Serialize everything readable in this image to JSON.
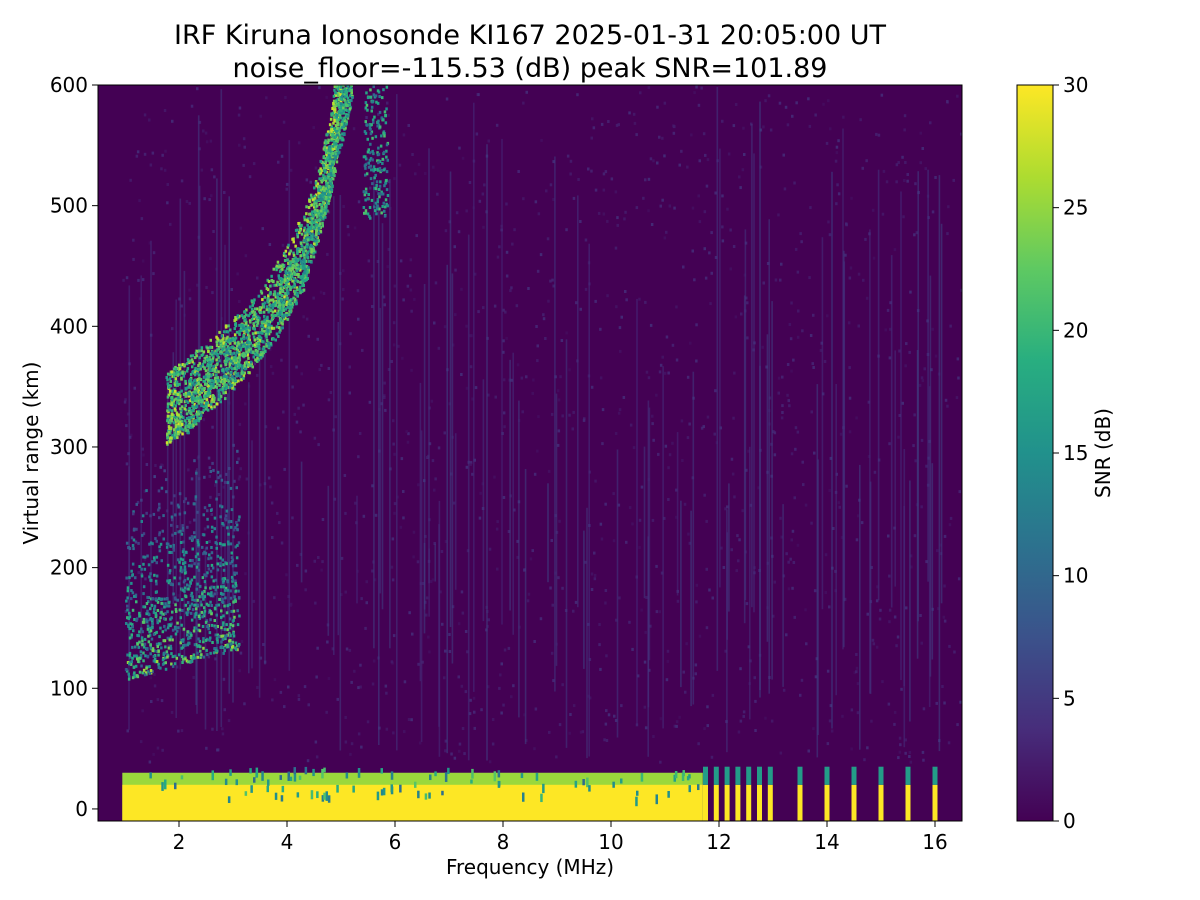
{
  "title": "IRF Kiruna Ionosonde KI167 2025-01-31 20:05:00  UT",
  "subtitle": "noise_floor=-115.53 (dB) peak SNR=101.89",
  "chart_data": {
    "type": "heatmap",
    "title": "IRF Kiruna Ionosonde KI167 2025-01-31 20:05:00  UT",
    "subtitle": "noise_floor=-115.53 (dB) peak SNR=101.89",
    "xlabel": "Frequency (MHz)",
    "ylabel": "Virtual range (km)",
    "colorbar_label": "SNR (dB)",
    "xlim": [
      0.5,
      16.5
    ],
    "ylim": [
      -10,
      600
    ],
    "clim": [
      0,
      30
    ],
    "colormap": "viridis",
    "x_ticks": [
      2,
      4,
      6,
      8,
      10,
      12,
      14,
      16
    ],
    "y_ticks": [
      0,
      100,
      200,
      300,
      400,
      500,
      600
    ],
    "colorbar_ticks": [
      0,
      5,
      10,
      15,
      20,
      25,
      30
    ],
    "sounding_freq_range": [
      0.95,
      16.5
    ],
    "sweep_freq_max_continuous": 11.7,
    "discrete_high_freqs": [
      11.75,
      11.95,
      12.15,
      12.35,
      12.55,
      12.75,
      12.95,
      13.5,
      14.0,
      14.5,
      15.0,
      15.5,
      16.0
    ],
    "features": [
      {
        "name": "ground clutter",
        "freq_range": [
          0.95,
          11.7
        ],
        "range_km": [
          -10,
          30
        ],
        "snr_db": 30
      },
      {
        "name": "E-region echo",
        "freq_range": [
          1.0,
          3.1
        ],
        "range_km": [
          108,
          260
        ],
        "snr_db": 25
      },
      {
        "name": "F-region trace (O-mode)",
        "points": [
          [
            1.75,
            315
          ],
          [
            2.0,
            322
          ],
          [
            2.5,
            340
          ],
          [
            3.0,
            360
          ],
          [
            3.5,
            385
          ],
          [
            4.0,
            420
          ],
          [
            4.5,
            470
          ],
          [
            4.8,
            530
          ],
          [
            5.0,
            600
          ]
        ],
        "snr_db": 28
      },
      {
        "name": "F-region trace (X-mode)",
        "points": [
          [
            2.1,
            318
          ],
          [
            2.6,
            345
          ],
          [
            3.2,
            372
          ],
          [
            3.8,
            400
          ],
          [
            4.3,
            440
          ],
          [
            4.7,
            500
          ],
          [
            5.0,
            560
          ],
          [
            5.2,
            600
          ]
        ],
        "snr_db": 24
      },
      {
        "name": "upper echo patch",
        "freq_range": [
          5.4,
          5.85
        ],
        "range_km": [
          490,
          600
        ],
        "snr_db": 22
      }
    ]
  }
}
